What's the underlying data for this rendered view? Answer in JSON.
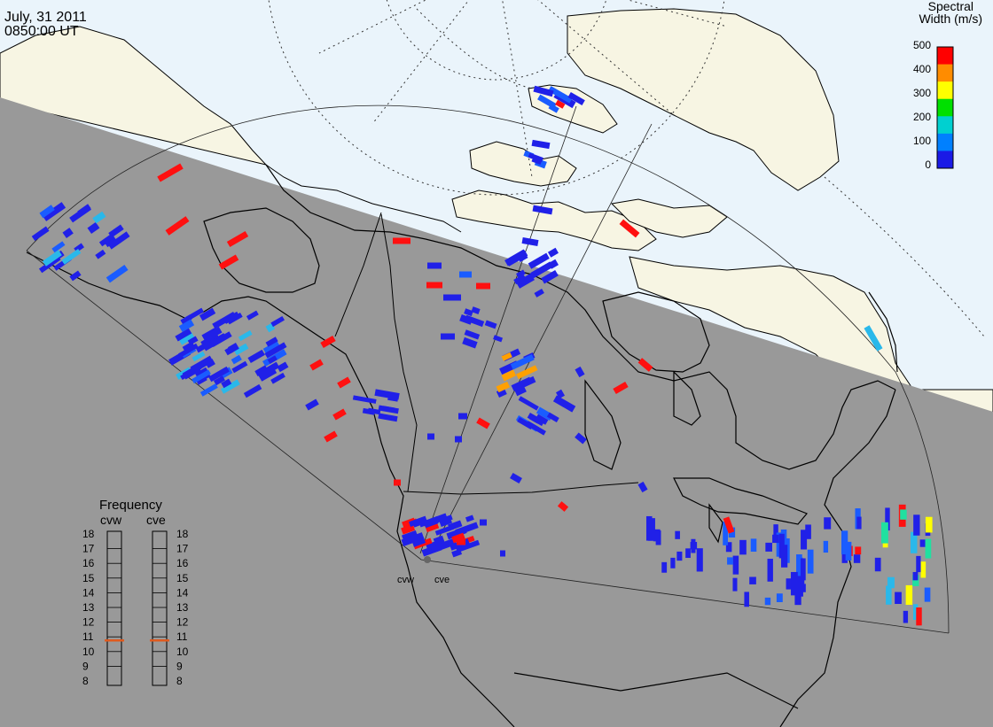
{
  "header": {
    "date": "July, 31 2011",
    "time": "0850:00 UT"
  },
  "colorbar": {
    "title_line1": "Spectral",
    "title_line2": "Width (m/s)",
    "ticks": [
      "500",
      "400",
      "300",
      "200",
      "100",
      "0"
    ],
    "colors": [
      "#ff0000",
      "#ff8c00",
      "#ffff00",
      "#00e000",
      "#00d0d0",
      "#0080ff",
      "#1a1ae6"
    ]
  },
  "frequency_panel": {
    "title": "Frequency",
    "radars": [
      "cvw",
      "cve"
    ],
    "scale": [
      "18",
      "17",
      "16",
      "15",
      "14",
      "13",
      "12",
      "11",
      "10",
      "9",
      "8"
    ],
    "current_mhz": [
      11,
      11
    ],
    "marker_color": "#e05a1e"
  },
  "radar_sites": {
    "labels": [
      "cvw",
      "cve"
    ]
  },
  "map": {
    "land_color": "#f7f5e3",
    "ocean_color": "#eaf4fb",
    "night_color": "#999999",
    "echo_colors": {
      "low": "#2020e8",
      "blue": "#1a5cff",
      "cyan": "#2ab8ea",
      "teal": "#20e0a0",
      "yellow": "#ffff00",
      "orange": "#ffa000",
      "high": "#ff1010"
    }
  }
}
